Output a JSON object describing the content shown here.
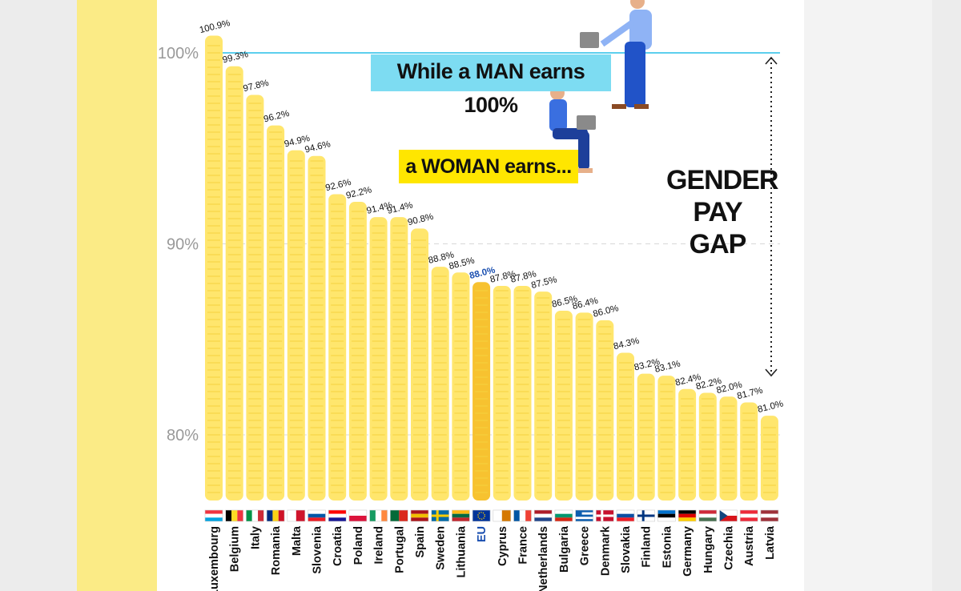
{
  "chart_data": {
    "type": "bar",
    "title": "GENDER PAY GAP",
    "annotation_man": "While a MAN earns 100%",
    "annotation_woman": "a WOMAN earns...",
    "gap_label": [
      "GENDER",
      "PAY GAP"
    ],
    "ylim": [
      76.5,
      102.5
    ],
    "yticks": [
      {
        "value": 100,
        "label": "100%"
      },
      {
        "value": 90,
        "label": "90%"
      },
      {
        "value": 80,
        "label": "80%"
      }
    ],
    "reference_line": 100,
    "highlight_category": "EU",
    "categories": [
      "Luxembourg",
      "Belgium",
      "Italy",
      "Romania",
      "Malta",
      "Slovenia",
      "Croatia",
      "Poland",
      "Ireland",
      "Portugal",
      "Spain",
      "Sweden",
      "Lithuania",
      "EU",
      "Cyprus",
      "France",
      "Netherlands",
      "Bulgaria",
      "Greece",
      "Denmark",
      "Slovakia",
      "Finland",
      "Estonia",
      "Germany",
      "Hungary",
      "Czechia",
      "Austria",
      "Latvia"
    ],
    "values": [
      100.9,
      99.3,
      97.8,
      96.2,
      94.9,
      94.6,
      92.6,
      92.2,
      91.4,
      91.4,
      90.8,
      88.8,
      88.5,
      88.0,
      87.8,
      87.8,
      87.5,
      86.5,
      86.4,
      86.0,
      84.3,
      83.2,
      83.1,
      82.4,
      82.2,
      82.0,
      81.7,
      81.0
    ],
    "value_labels": [
      "100.9%",
      "99.3%",
      "97.8%",
      "96.2%",
      "94.9%",
      "94.6%",
      "92.6%",
      "92.2%",
      "91.4%",
      "91.4%",
      "90.8%",
      "88.8%",
      "88.5%",
      "88.0%",
      "87.8%",
      "87.8%",
      "87.5%",
      "86.5%",
      "86.4%",
      "86.0%",
      "84.3%",
      "83.2%",
      "83.1%",
      "82.4%",
      "82.2%",
      "82.0%",
      "81.7%",
      "81.0%"
    ]
  },
  "colors": {
    "bar": "#ffe66d",
    "bar_highlight": "#f7c230",
    "coin_line": "#f4d23e",
    "reference_line": "#5ccfee",
    "highlight_label": "#1a4fb0",
    "text": "#111111",
    "axis_text": "#999999"
  },
  "flags": {
    "Luxembourg": [
      "#ef3340",
      "#ffffff",
      "#00a3e0"
    ],
    "Belgium": [
      "#000000",
      "#fdda24",
      "#ef3340"
    ],
    "Italy": [
      "#009246",
      "#ffffff",
      "#ce2b37"
    ],
    "Romania": [
      "#002b7f",
      "#fcd116",
      "#ce1126"
    ],
    "Malta": [
      "#ffffff",
      "#cf142b"
    ],
    "Slovenia": [
      "#ffffff",
      "#0056a7",
      "#ed1c24"
    ],
    "Croatia": [
      "#ff0000",
      "#ffffff",
      "#171796"
    ],
    "Poland": [
      "#ffffff",
      "#dc143c"
    ],
    "Ireland": [
      "#169b62",
      "#ffffff",
      "#ff883e"
    ],
    "Portugal": [
      "#046a38",
      "#da291c"
    ],
    "Spain": [
      "#aa151b",
      "#f1bf00",
      "#aa151b"
    ],
    "Sweden": [
      "#006aa7",
      "#fecc00"
    ],
    "Lithuania": [
      "#fdb913",
      "#006a44",
      "#c1272d"
    ],
    "EU": [
      "#003399",
      "#ffcc00"
    ],
    "Cyprus": [
      "#ffffff",
      "#d57800"
    ],
    "France": [
      "#0055a4",
      "#ffffff",
      "#ef4135"
    ],
    "Netherlands": [
      "#ae1c28",
      "#ffffff",
      "#21468b"
    ],
    "Bulgaria": [
      "#ffffff",
      "#00966e",
      "#d62612"
    ],
    "Greece": [
      "#0d5eaf",
      "#ffffff"
    ],
    "Denmark": [
      "#c8102e",
      "#ffffff"
    ],
    "Slovakia": [
      "#ffffff",
      "#0b4ea2",
      "#ee1c25"
    ],
    "Finland": [
      "#ffffff",
      "#003580"
    ],
    "Estonia": [
      "#0072ce",
      "#000000",
      "#ffffff"
    ],
    "Germany": [
      "#000000",
      "#dd0000",
      "#ffce00"
    ],
    "Hungary": [
      "#ce2939",
      "#ffffff",
      "#477050"
    ],
    "Czechia": [
      "#ffffff",
      "#d7141a",
      "#11457e"
    ],
    "Austria": [
      "#ed2939",
      "#ffffff",
      "#ed2939"
    ],
    "Latvia": [
      "#9e3039",
      "#ffffff",
      "#9e3039"
    ]
  }
}
